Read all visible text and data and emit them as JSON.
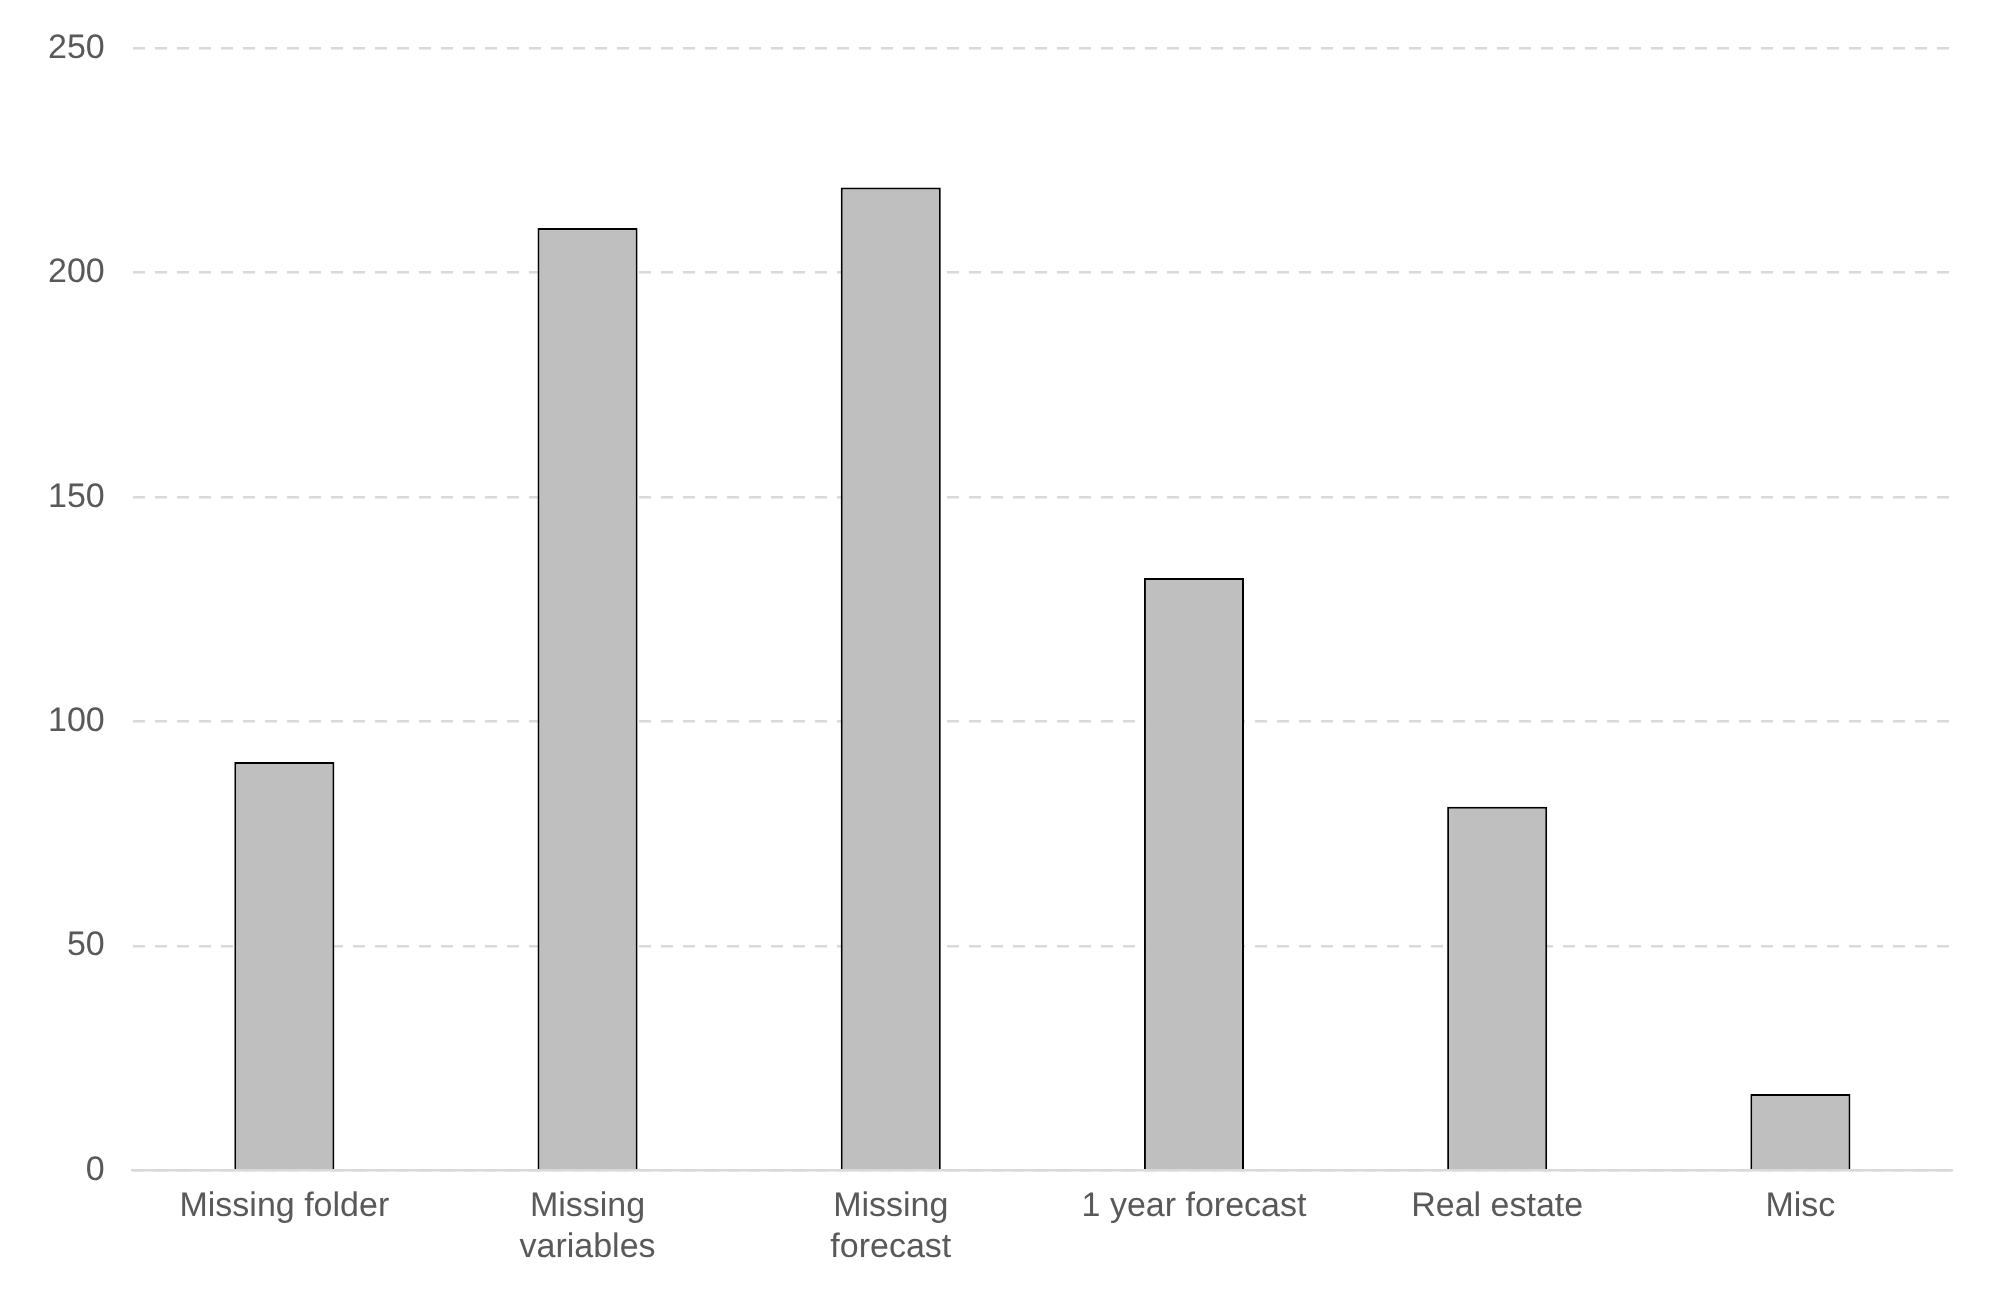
{
  "chart_data": {
    "type": "bar",
    "categories": [
      "Missing folder",
      "Missing variables",
      "Missing forecast",
      "1 year forecast",
      "Real estate",
      "Misc"
    ],
    "values": [
      91,
      210,
      219,
      132,
      81,
      17
    ],
    "color": "#bfbfbf",
    "ylim": [
      0,
      250
    ],
    "yticks": [
      0,
      50,
      100,
      150,
      200,
      250
    ],
    "grid": "y",
    "legend": false
  }
}
